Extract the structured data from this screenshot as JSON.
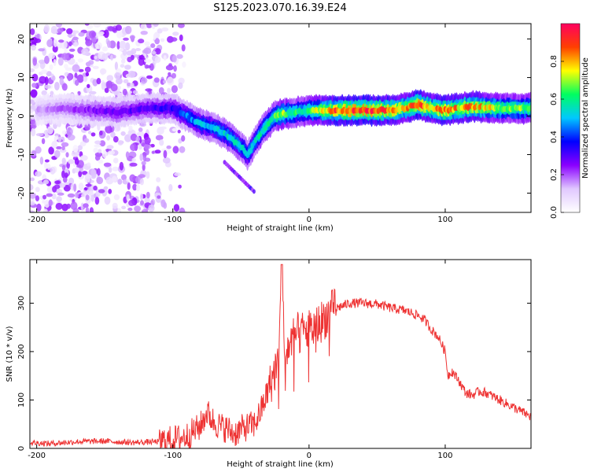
{
  "figure": {
    "title": "S125.2023.070.16.39.E24"
  },
  "chart_data": [
    {
      "type": "heatmap",
      "title": "S125.2023.070.16.39.E24",
      "xlabel": "Height of straight line (km)",
      "ylabel": "Frequency (Hz)",
      "xlim": [
        -205,
        163
      ],
      "ylim": [
        -25,
        24
      ],
      "x_ticks": [
        -200,
        -100,
        0,
        100
      ],
      "y_ticks": [
        -20,
        -10,
        0,
        10,
        20
      ],
      "colorbar": {
        "label": "Normalized spectral amplitude",
        "range": [
          0,
          1
        ],
        "ticks": [
          0.0,
          0.2,
          0.4,
          0.6,
          0.8
        ],
        "colormap": [
          "#ffffff",
          "#e0c8ff",
          "#8a00ff",
          "#0000ff",
          "#00c8ff",
          "#00ff60",
          "#ffff00",
          "#ff4000",
          "#ff0060"
        ]
      },
      "ridge": {
        "name": "",
        "x": [
          -200,
          -180,
          -160,
          -140,
          -120,
          -100,
          -90,
          -80,
          -70,
          -60,
          -50,
          -45,
          -40,
          -35,
          -30,
          -25,
          -20,
          -10,
          0,
          20,
          40,
          60,
          70,
          80,
          90,
          100,
          110,
          120,
          140,
          163
        ],
        "y": [
          1.5,
          2,
          1.5,
          1,
          2,
          2,
          0,
          -2,
          -3,
          -5,
          -8,
          -10,
          -7,
          -4,
          -2,
          0,
          0.5,
          1,
          1.5,
          1.5,
          1.5,
          1.5,
          2,
          3,
          2,
          1.5,
          2,
          2.5,
          2,
          2
        ],
        "amplitude": [
          0.15,
          0.2,
          0.25,
          0.3,
          0.3,
          0.35,
          0.45,
          0.5,
          0.5,
          0.55,
          0.55,
          0.5,
          0.55,
          0.6,
          0.6,
          0.65,
          0.7,
          0.6,
          0.65,
          0.9,
          0.95,
          0.9,
          0.8,
          0.95,
          0.8,
          0.9,
          0.8,
          0.85,
          0.7,
          0.7
        ]
      }
    },
    {
      "type": "line",
      "title": "",
      "xlabel": "Height of straight line (km)",
      "ylabel": "SNR (10 * v/v)",
      "xlim": [
        -205,
        163
      ],
      "ylim": [
        0,
        390
      ],
      "x_ticks": [
        -200,
        -100,
        0,
        100
      ],
      "y_ticks": [
        0,
        100,
        200,
        300
      ],
      "series": [
        {
          "name": "",
          "color": "#ee3333",
          "x": [
            -205,
            -190,
            -170,
            -150,
            -130,
            -110,
            -100,
            -90,
            -80,
            -75,
            -70,
            -65,
            -60,
            -55,
            -50,
            -45,
            -40,
            -35,
            -30,
            -25,
            -22,
            -20,
            -18,
            -15,
            -10,
            -5,
            0,
            5,
            10,
            15,
            20,
            30,
            40,
            50,
            60,
            70,
            80,
            85,
            90,
            95,
            100,
            102,
            105,
            110,
            115,
            120,
            125,
            130,
            140,
            150,
            160,
            163
          ],
          "y": [
            12,
            10,
            14,
            15,
            12,
            14,
            18,
            25,
            45,
            75,
            55,
            45,
            40,
            30,
            40,
            45,
            50,
            80,
            120,
            160,
            200,
            380,
            190,
            210,
            235,
            240,
            245,
            250,
            265,
            280,
            290,
            300,
            300,
            298,
            290,
            285,
            275,
            265,
            245,
            230,
            200,
            150,
            160,
            140,
            115,
            110,
            118,
            115,
            100,
            85,
            70,
            65
          ]
        }
      ]
    }
  ]
}
